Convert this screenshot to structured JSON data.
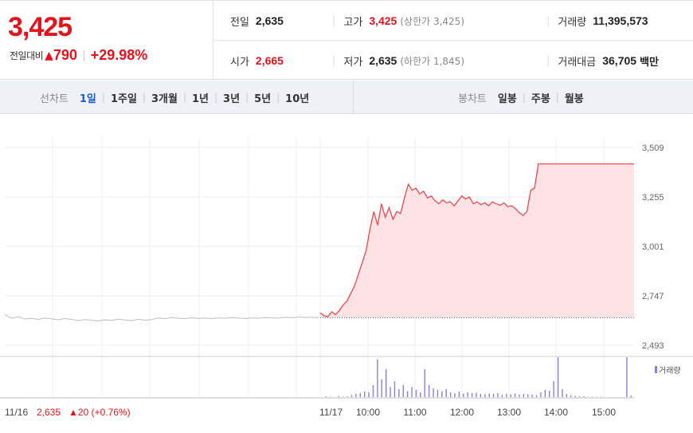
{
  "summary": {
    "price": "3,425",
    "change_label": "전일대비",
    "change_icon": "up-arrow-icon",
    "change_value": "790",
    "change_rate": "+29.98%"
  },
  "info": {
    "prev_close": {
      "label": "전일",
      "value": "2,635"
    },
    "high": {
      "label": "고가",
      "value": "3,425",
      "sub": "(상한가 3,425)"
    },
    "volume": {
      "label": "거래량",
      "value": "11,395,573"
    },
    "open": {
      "label": "시가",
      "value": "2,665"
    },
    "low": {
      "label": "저가",
      "value": "2,635",
      "sub": "(하한가 1,845)"
    },
    "trade_amount": {
      "label": "거래대금",
      "value": "36,705",
      "unit": "백만"
    }
  },
  "tabs": {
    "line_title": "선차트",
    "line_tabs": [
      "1일",
      "1주일",
      "3개월",
      "1년",
      "3년",
      "5년",
      "10년"
    ],
    "line_active": "1일",
    "candle_title": "봉차트",
    "candle_tabs": [
      "일봉",
      "주봉",
      "월봉"
    ]
  },
  "colors": {
    "up": "#e4131b",
    "price_line": "#f0464e",
    "price_fill": "#fde3e5",
    "prev_day_line": "#bdbdbd",
    "volume_bar": "#8d7fd6",
    "active_tab": "#1b5cc8"
  },
  "chart_data": {
    "type": "line",
    "y_ticks": [
      "3,509",
      "3,255",
      "3,001",
      "2,747",
      "2,493"
    ],
    "y_tick_values": [
      3509,
      3255,
      3001,
      2747,
      2493
    ],
    "ylim": [
      2493,
      3509
    ],
    "baseline": 2635,
    "x_ticks": [
      "11/17",
      "10:00",
      "11:00",
      "12:00",
      "13:00",
      "14:00",
      "15:00"
    ],
    "volume_legend": "거래량",
    "prev_day": {
      "label_date": "11/16",
      "label_price": "2,635",
      "label_change": "▲20 (+0.76%)",
      "values": [
        2650,
        2632,
        2640,
        2628,
        2631,
        2626,
        2633,
        2629,
        2624,
        2630,
        2626,
        2620,
        2625,
        2622,
        2618,
        2624,
        2621,
        2627,
        2623,
        2620,
        2626,
        2622,
        2625,
        2634,
        2630,
        2636,
        2632,
        2630,
        2634,
        2631,
        2633,
        2630,
        2634,
        2632,
        2635,
        2633,
        2630,
        2634,
        2632,
        2636,
        2634,
        2633,
        2637,
        2635,
        2638,
        2636,
        2637,
        2635
      ]
    },
    "today": {
      "series_name": "",
      "values": [
        2660,
        2645,
        2640,
        2665,
        2650,
        2672,
        2700,
        2720,
        2760,
        2800,
        2860,
        2920,
        2980,
        3090,
        3180,
        3110,
        3220,
        3150,
        3200,
        3140,
        3180,
        3170,
        3250,
        3320,
        3290,
        3300,
        3270,
        3285,
        3250,
        3260,
        3235,
        3220,
        3240,
        3225,
        3230,
        3210,
        3235,
        3260,
        3245,
        3255,
        3220,
        3230,
        3215,
        3225,
        3210,
        3230,
        3220,
        3212,
        3225,
        3205,
        3210,
        3195,
        3175,
        3160,
        3180,
        3290,
        3300,
        3425,
        3425,
        3425,
        3425,
        3425,
        3425,
        3425,
        3425,
        3425,
        3425,
        3425,
        3425,
        3425,
        3425,
        3425,
        3425,
        3425,
        3425,
        3425,
        3425,
        3425,
        3425,
        3425,
        3425,
        3425,
        3425
      ]
    },
    "volume": {
      "values": [
        0,
        2,
        1,
        0,
        3,
        1,
        2,
        5,
        8,
        10,
        14,
        12,
        30,
        95,
        45,
        70,
        25,
        40,
        20,
        30,
        15,
        25,
        18,
        12,
        70,
        30,
        22,
        18,
        15,
        20,
        12,
        10,
        14,
        9,
        12,
        10,
        11,
        8,
        7,
        9,
        8,
        10,
        6,
        8,
        7,
        9,
        6,
        8,
        7,
        6,
        5,
        12,
        18,
        16,
        40,
        100,
        20,
        8,
        5,
        3,
        2,
        2,
        1,
        1,
        1,
        1,
        0,
        0,
        0,
        0,
        0,
        100,
        4
      ]
    }
  }
}
